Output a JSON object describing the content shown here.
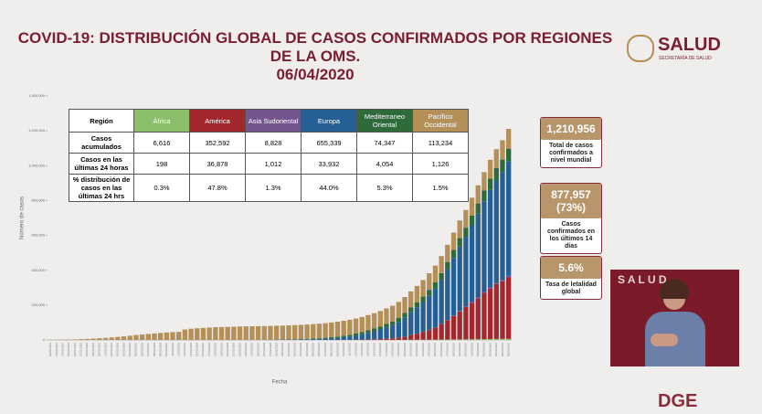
{
  "header": {
    "title_line1": "COVID-19: DISTRIBUCIÓN GLOBAL DE CASOS CONFIRMADOS POR REGIONES",
    "title_line2": "DE LA OMS.",
    "date": "06/04/2020",
    "logo": "SALUD",
    "logo_sub": "SECRETARÍA DE SALUD",
    "footer_logo": "DGE"
  },
  "table": {
    "header": "Región",
    "rows": [
      {
        "label": "Casos acumulados",
        "cells": [
          "6,616",
          "352,592",
          "8,828",
          "655,339",
          "74,347",
          "113,234"
        ]
      },
      {
        "label": "Casos en las últimas 24 horas",
        "cells": [
          "198",
          "36,878",
          "1,012",
          "33,932",
          "4,054",
          "1,126"
        ]
      },
      {
        "label": "% distribución de casos en las últimas 24 hrs",
        "cells": [
          "0.3%",
          "47.8%",
          "1.3%",
          "44.0%",
          "5.3%",
          "1.5%"
        ]
      }
    ]
  },
  "kpis": [
    {
      "value": "1,210,956",
      "label": "Total de casos confirmados a nivel mundial"
    },
    {
      "value": "877,957 (73%)",
      "label": "Casos confirmados en los últimos 14 días"
    },
    {
      "value": "5.6%",
      "label": "Tasa de letalidad global"
    }
  ],
  "chart_data": {
    "type": "stacked_bar",
    "y_label": "Número de casos",
    "x_label": "Fecha",
    "ylim": [
      0,
      1400000
    ],
    "yticks": [
      0,
      {
        "value": 200000,
        "label": "200,000"
      },
      {
        "value": 400000,
        "label": "400,000"
      },
      {
        "value": 600000,
        "label": "600,000"
      },
      {
        "value": 800000,
        "label": "800,000"
      },
      {
        "value": 1000000,
        "label": "1,000,000"
      },
      {
        "value": 1200000,
        "label": "1,200,000"
      },
      {
        "value": 1400000,
        "label": "1,400,000"
      }
    ],
    "categories": [
      "22/01/2020",
      "23/01/2020",
      "24/01/2020",
      "25/01/2020",
      "26/01/2020",
      "27/01/2020",
      "28/01/2020",
      "29/01/2020",
      "30/01/2020",
      "31/01/2020",
      "01/02/2020",
      "02/02/2020",
      "03/02/2020",
      "04/02/2020",
      "05/02/2020",
      "06/02/2020",
      "07/02/2020",
      "08/02/2020",
      "09/02/2020",
      "10/02/2020",
      "11/02/2020",
      "12/02/2020",
      "13/02/2020",
      "14/02/2020",
      "15/02/2020",
      "16/02/2020",
      "17/02/2020",
      "18/02/2020",
      "19/02/2020",
      "20/02/2020",
      "21/02/2020",
      "22/02/2020",
      "23/02/2020",
      "24/02/2020",
      "25/02/2020",
      "26/02/2020",
      "27/02/2020",
      "28/02/2020",
      "29/02/2020",
      "01/03/2020",
      "02/03/2020",
      "03/03/2020",
      "04/03/2020",
      "05/03/2020",
      "06/03/2020",
      "07/03/2020",
      "08/03/2020",
      "09/03/2020",
      "10/03/2020",
      "11/03/2020",
      "12/03/2020",
      "13/03/2020",
      "14/03/2020",
      "15/03/2020",
      "16/03/2020",
      "17/03/2020",
      "18/03/2020",
      "19/03/2020",
      "20/03/2020",
      "21/03/2020",
      "22/03/2020",
      "23/03/2020",
      "24/03/2020",
      "25/03/2020",
      "26/03/2020",
      "27/03/2020",
      "28/03/2020",
      "29/03/2020",
      "30/03/2020",
      "31/03/2020",
      "01/04/2020",
      "02/04/2020",
      "03/04/2020",
      "04/04/2020",
      "05/04/2020",
      "06/04/2020"
    ],
    "series": [
      {
        "name": "África",
        "color": "#8cbf6b",
        "values": [
          0,
          0,
          0,
          0,
          0,
          0,
          0,
          0,
          0,
          0,
          0,
          0,
          0,
          0,
          0,
          0,
          0,
          0,
          0,
          0,
          0,
          0,
          0,
          1,
          1,
          1,
          1,
          1,
          1,
          1,
          1,
          1,
          1,
          1,
          1,
          1,
          2,
          2,
          3,
          5,
          7,
          12,
          15,
          25,
          30,
          45,
          60,
          75,
          100,
          120,
          150,
          200,
          250,
          300,
          400,
          500,
          600,
          700,
          850,
          1000,
          1200,
          1400,
          1600,
          1900,
          2200,
          2500,
          2900,
          3300,
          3700,
          4100,
          4600,
          5000,
          5400,
          5800,
          6200,
          6616
        ]
      },
      {
        "name": "América",
        "color": "#a3282e",
        "values": [
          1,
          1,
          1,
          2,
          3,
          5,
          5,
          6,
          6,
          9,
          9,
          11,
          11,
          12,
          12,
          12,
          12,
          12,
          12,
          12,
          13,
          13,
          15,
          15,
          15,
          15,
          15,
          15,
          15,
          15,
          15,
          15,
          35,
          35,
          53,
          53,
          59,
          62,
          68,
          75,
          90,
          110,
          150,
          200,
          300,
          400,
          500,
          600,
          800,
          1000,
          1400,
          2000,
          2800,
          3500,
          4500,
          6500,
          9000,
          13000,
          18000,
          27000,
          35000,
          45000,
          55000,
          70000,
          90000,
          110000,
          135000,
          160000,
          185000,
          210000,
          235000,
          265000,
          290000,
          315000,
          330000,
          352592
        ]
      },
      {
        "name": "Asia Sudoriental",
        "color": "#74558e",
        "values": [
          2,
          4,
          4,
          4,
          4,
          4,
          5,
          5,
          5,
          7,
          8,
          8,
          10,
          12,
          13,
          14,
          15,
          15,
          15,
          15,
          15,
          15,
          15,
          15,
          15,
          15,
          15,
          15,
          15,
          15,
          15,
          15,
          15,
          15,
          15,
          15,
          15,
          15,
          15,
          15,
          20,
          30,
          40,
          50,
          60,
          70,
          90,
          110,
          130,
          150,
          180,
          220,
          260,
          300,
          350,
          400,
          450,
          500,
          600,
          700,
          850,
          1000,
          1200,
          1400,
          1600,
          2000,
          2400,
          2900,
          3400,
          4000,
          4800,
          5500,
          6300,
          7000,
          7800,
          8828
        ]
      },
      {
        "name": "Europa",
        "color": "#255f93",
        "values": [
          0,
          0,
          0,
          3,
          3,
          4,
          5,
          5,
          5,
          10,
          20,
          25,
          28,
          30,
          30,
          30,
          35,
          40,
          40,
          45,
          45,
          45,
          45,
          46,
          46,
          46,
          46,
          46,
          46,
          46,
          50,
          80,
          200,
          250,
          350,
          500,
          700,
          1000,
          1300,
          1800,
          2300,
          2800,
          3500,
          4500,
          5500,
          7000,
          9000,
          11500,
          15000,
          19000,
          24000,
          30000,
          38000,
          46000,
          55000,
          65000,
          75000,
          90000,
          110000,
          130000,
          150000,
          170000,
          195000,
          220000,
          250000,
          290000,
          330000,
          370000,
          400000,
          440000,
          480000,
          520000,
          560000,
          590000,
          620000,
          655339
        ]
      },
      {
        "name": "Mediterraneo Oriental",
        "color": "#2f6a3b",
        "values": [
          0,
          0,
          0,
          0,
          0,
          0,
          0,
          4,
          4,
          4,
          5,
          5,
          5,
          5,
          5,
          6,
          7,
          7,
          7,
          7,
          7,
          8,
          8,
          9,
          9,
          9,
          9,
          9,
          9,
          11,
          20,
          40,
          60,
          100,
          150,
          200,
          300,
          400,
          600,
          900,
          1300,
          1800,
          2400,
          3000,
          4000,
          5000,
          6500,
          7500,
          8500,
          9500,
          11000,
          12500,
          14000,
          15500,
          17500,
          19500,
          21500,
          23500,
          25500,
          27500,
          29500,
          32000,
          34500,
          37000,
          40000,
          43000,
          46000,
          49000,
          52000,
          56000,
          59000,
          62000,
          65000,
          68000,
          71000,
          74347
        ]
      },
      {
        "name": "Pacífico Occidental",
        "color": "#b48f57",
        "values": [
          580,
          850,
          1300,
          2000,
          2800,
          4500,
          6000,
          7800,
          9800,
          11900,
          14500,
          17300,
          20500,
          24500,
          28200,
          31300,
          34500,
          37300,
          40300,
          42900,
          45000,
          46500,
          60000,
          64500,
          67000,
          69200,
          71300,
          73300,
          74300,
          75200,
          76000,
          77300,
          77700,
          78000,
          78500,
          79000,
          79500,
          80000,
          80500,
          81000,
          81500,
          82000,
          82500,
          83000,
          83500,
          84000,
          84500,
          85000,
          85500,
          86000,
          86500,
          87000,
          87500,
          88000,
          88500,
          89000,
          89700,
          90500,
          91500,
          92500,
          93500,
          94500,
          95500,
          96500,
          97500,
          98500,
          99500,
          100500,
          101500,
          102500,
          104000,
          105500,
          107000,
          109000,
          111000,
          113234
        ]
      }
    ]
  }
}
